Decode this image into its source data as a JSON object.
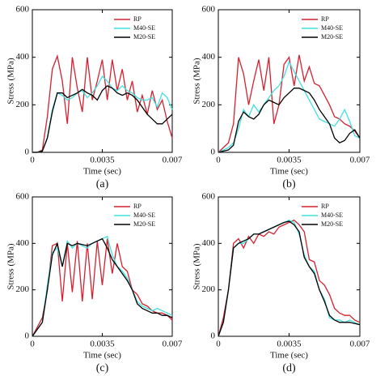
{
  "chart_data": [
    {
      "type": "line",
      "caption": "(a)",
      "xlabel": "Time (sec)",
      "ylabel": "Stress (MPa)",
      "xlim": [
        0,
        0.007
      ],
      "ylim": [
        0,
        600
      ],
      "xticks": [
        0,
        0.0035,
        0.007
      ],
      "yticks": [
        0,
        200,
        400,
        600
      ],
      "legend": "upper right",
      "x": [
        0,
        0.00025,
        0.0005,
        0.00075,
        0.001,
        0.00125,
        0.0015,
        0.00175,
        0.002,
        0.00225,
        0.0025,
        0.00275,
        0.003,
        0.00325,
        0.0035,
        0.00375,
        0.004,
        0.00425,
        0.0045,
        0.00475,
        0.005,
        0.00525,
        0.0055,
        0.00575,
        0.006,
        0.00625,
        0.0065,
        0.00675,
        0.007
      ],
      "series": [
        {
          "name": "RP",
          "color": "#d42030",
          "values": [
            0,
            0,
            10,
            150,
            350,
            405,
            300,
            120,
            400,
            270,
            170,
            400,
            220,
            300,
            390,
            220,
            390,
            260,
            350,
            220,
            300,
            170,
            240,
            160,
            260,
            180,
            220,
            130,
            60
          ]
        },
        {
          "name": "M40-SE",
          "color": "#40e0e0",
          "values": [
            0,
            0,
            5,
            60,
            180,
            250,
            240,
            220,
            230,
            250,
            260,
            230,
            250,
            280,
            320,
            300,
            270,
            260,
            280,
            260,
            250,
            230,
            220,
            220,
            230,
            190,
            250,
            230,
            180
          ]
        },
        {
          "name": "M20-SE",
          "color": "#000000",
          "values": [
            0,
            0,
            5,
            60,
            170,
            250,
            250,
            230,
            240,
            250,
            265,
            250,
            240,
            220,
            260,
            280,
            270,
            250,
            240,
            250,
            240,
            220,
            190,
            160,
            140,
            120,
            120,
            140,
            160
          ]
        }
      ]
    },
    {
      "type": "line",
      "caption": "(b)",
      "xlabel": "Time (sec)",
      "ylabel": "Stress (MPa)",
      "xlim": [
        0,
        0.007
      ],
      "ylim": [
        0,
        600
      ],
      "xticks": [
        0,
        0.0035,
        0.007
      ],
      "yticks": [
        0,
        200,
        400,
        600
      ],
      "legend": "upper right",
      "x": [
        0,
        0.00025,
        0.0005,
        0.00075,
        0.001,
        0.00125,
        0.0015,
        0.00175,
        0.002,
        0.00225,
        0.0025,
        0.00275,
        0.003,
        0.00325,
        0.0035,
        0.00375,
        0.004,
        0.00425,
        0.0045,
        0.00475,
        0.005,
        0.00525,
        0.0055,
        0.00575,
        0.006,
        0.00625,
        0.0065,
        0.00675,
        0.007
      ],
      "series": [
        {
          "name": "RP",
          "color": "#d42030",
          "values": [
            0,
            20,
            40,
            120,
            400,
            330,
            200,
            300,
            390,
            260,
            400,
            120,
            200,
            370,
            400,
            280,
            410,
            300,
            360,
            290,
            280,
            240,
            200,
            150,
            140,
            120,
            110,
            90,
            60
          ]
        },
        {
          "name": "M40-SE",
          "color": "#40e0e0",
          "values": [
            0,
            10,
            20,
            40,
            100,
            180,
            150,
            200,
            170,
            200,
            230,
            260,
            280,
            320,
            380,
            340,
            300,
            260,
            220,
            180,
            140,
            130,
            120,
            110,
            140,
            180,
            130,
            70,
            60
          ]
        },
        {
          "name": "M20-SE",
          "color": "#000000",
          "values": [
            0,
            5,
            10,
            30,
            130,
            170,
            150,
            140,
            160,
            200,
            220,
            210,
            200,
            230,
            250,
            270,
            270,
            260,
            250,
            220,
            180,
            150,
            120,
            60,
            40,
            50,
            80,
            95,
            60
          ]
        }
      ]
    },
    {
      "type": "line",
      "caption": "(c)",
      "xlabel": "Time (sec)",
      "ylabel": "Stress (MPa)",
      "xlim": [
        0,
        0.007
      ],
      "ylim": [
        0,
        600
      ],
      "xticks": [
        0,
        0.0035,
        0.007
      ],
      "yticks": [
        0,
        200,
        400,
        600
      ],
      "legend": "upper right",
      "x": [
        0,
        0.00025,
        0.0005,
        0.00075,
        0.001,
        0.00125,
        0.0015,
        0.00175,
        0.002,
        0.00225,
        0.0025,
        0.00275,
        0.003,
        0.00325,
        0.0035,
        0.00375,
        0.004,
        0.00425,
        0.0045,
        0.00475,
        0.005,
        0.00525,
        0.0055,
        0.00575,
        0.006,
        0.00625,
        0.0065,
        0.00675,
        0.007
      ],
      "series": [
        {
          "name": "RP",
          "color": "#d42030",
          "values": [
            0,
            40,
            80,
            200,
            390,
            400,
            150,
            400,
            190,
            410,
            150,
            400,
            160,
            410,
            220,
            420,
            270,
            400,
            300,
            280,
            200,
            180,
            140,
            130,
            110,
            100,
            100,
            90,
            70
          ]
        },
        {
          "name": "M40-SE",
          "color": "#40e0e0",
          "values": [
            0,
            30,
            60,
            220,
            360,
            380,
            300,
            410,
            380,
            400,
            390,
            380,
            400,
            410,
            420,
            430,
            350,
            300,
            280,
            250,
            200,
            150,
            130,
            120,
            110,
            120,
            110,
            100,
            90
          ]
        },
        {
          "name": "M20-SE",
          "color": "#000000",
          "values": [
            0,
            30,
            60,
            200,
            350,
            400,
            300,
            400,
            390,
            400,
            395,
            390,
            400,
            410,
            420,
            380,
            330,
            300,
            270,
            240,
            200,
            140,
            120,
            110,
            100,
            100,
            90,
            90,
            80
          ]
        }
      ]
    },
    {
      "type": "line",
      "caption": "(d)",
      "xlabel": "Time (sec)",
      "ylabel": "Stress (MPa)",
      "xlim": [
        0,
        0.007
      ],
      "ylim": [
        0,
        600
      ],
      "xticks": [
        0,
        0.0035,
        0.007
      ],
      "yticks": [
        0,
        200,
        400,
        600
      ],
      "legend": "upper right",
      "x": [
        0,
        0.00025,
        0.0005,
        0.00075,
        0.001,
        0.00125,
        0.0015,
        0.00175,
        0.002,
        0.00225,
        0.0025,
        0.00275,
        0.003,
        0.00325,
        0.0035,
        0.00375,
        0.004,
        0.00425,
        0.0045,
        0.00475,
        0.005,
        0.00525,
        0.0055,
        0.00575,
        0.006,
        0.00625,
        0.0065,
        0.00675,
        0.007
      ],
      "series": [
        {
          "name": "RP",
          "color": "#d42030",
          "values": [
            0,
            80,
            200,
            400,
            420,
            380,
            430,
            400,
            440,
            430,
            450,
            440,
            470,
            480,
            490,
            500,
            480,
            450,
            330,
            320,
            240,
            220,
            180,
            120,
            100,
            90,
            90,
            70,
            60
          ]
        },
        {
          "name": "M40-SE",
          "color": "#40e0e0",
          "values": [
            0,
            60,
            200,
            380,
            400,
            400,
            420,
            440,
            440,
            450,
            460,
            470,
            480,
            490,
            500,
            490,
            440,
            350,
            300,
            280,
            200,
            160,
            80,
            70,
            70,
            60,
            70,
            60,
            50
          ]
        },
        {
          "name": "M20-SE",
          "color": "#000000",
          "values": [
            0,
            60,
            200,
            380,
            400,
            410,
            420,
            440,
            440,
            450,
            460,
            470,
            480,
            490,
            495,
            480,
            450,
            340,
            300,
            270,
            200,
            150,
            90,
            70,
            60,
            60,
            60,
            55,
            50
          ]
        }
      ]
    }
  ]
}
